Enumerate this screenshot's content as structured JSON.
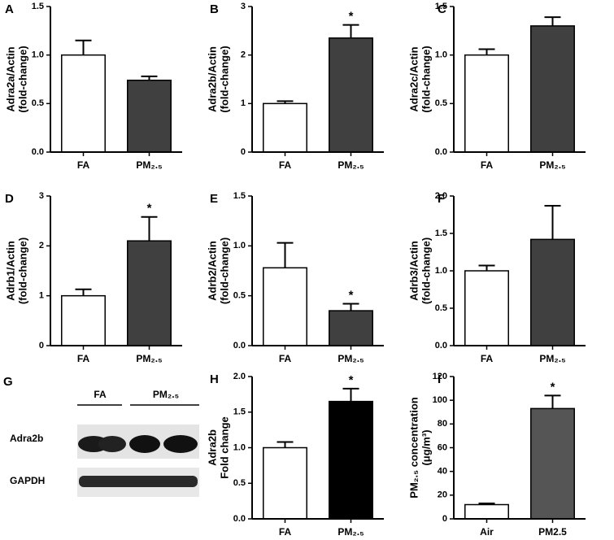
{
  "chart_data": [
    {
      "type": "bar",
      "panel": "A",
      "ylabel": [
        "Adra2a/Actin",
        "(fold-change)"
      ],
      "categories": [
        "FA",
        "PM₂.₅"
      ],
      "values": [
        1.0,
        0.74
      ],
      "errors": [
        0.15,
        0.04
      ],
      "colors": [
        "#ffffff",
        "#404040"
      ],
      "annotations": [
        null,
        null
      ],
      "ylim": [
        0,
        1.5
      ],
      "yticks": [
        {
          "value": 0,
          "label": "0.0"
        },
        0.5,
        {
          "value": 1,
          "label": "1.0"
        },
        1.5
      ]
    },
    {
      "type": "bar",
      "panel": "B",
      "ylabel": [
        "Adra2b/Actin",
        "(fold-change)"
      ],
      "categories": [
        "FA",
        "PM₂.₅"
      ],
      "values": [
        1.0,
        2.35
      ],
      "errors": [
        0.05,
        0.27
      ],
      "colors": [
        "#ffffff",
        "#404040"
      ],
      "annotations": [
        null,
        "*"
      ],
      "ylim": [
        0,
        3
      ],
      "yticks": [
        0,
        1,
        2,
        3
      ]
    },
    {
      "type": "bar",
      "panel": "C",
      "ylabel": [
        "Adra2c/Actin",
        "(fold-change)"
      ],
      "categories": [
        "FA",
        "PM₂.₅"
      ],
      "values": [
        1.0,
        1.3
      ],
      "errors": [
        0.06,
        0.09
      ],
      "colors": [
        "#ffffff",
        "#404040"
      ],
      "annotations": [
        null,
        null
      ],
      "ylim": [
        0,
        1.5
      ],
      "yticks": [
        {
          "value": 0,
          "label": "0.0"
        },
        0.5,
        {
          "value": 1,
          "label": "1.0"
        },
        1.5
      ]
    },
    {
      "type": "bar",
      "panel": "D",
      "ylabel": [
        "Adrb1/Actin",
        "(fold-change)"
      ],
      "categories": [
        "FA",
        "PM₂.₅"
      ],
      "values": [
        1.0,
        2.1
      ],
      "errors": [
        0.13,
        0.48
      ],
      "colors": [
        "#ffffff",
        "#404040"
      ],
      "annotations": [
        null,
        "*"
      ],
      "ylim": [
        0,
        3
      ],
      "yticks": [
        0,
        1,
        2,
        3
      ]
    },
    {
      "type": "bar",
      "panel": "E",
      "ylabel": [
        "Adrb2/Actin",
        "(fold-change)"
      ],
      "categories": [
        "FA",
        "PM₂.₅"
      ],
      "values": [
        0.78,
        0.35
      ],
      "errors": [
        0.25,
        0.07
      ],
      "colors": [
        "#ffffff",
        "#404040"
      ],
      "annotations": [
        null,
        "*"
      ],
      "ylim": [
        0,
        1.5
      ],
      "yticks": [
        {
          "value": 0,
          "label": "0.0"
        },
        0.5,
        {
          "value": 1,
          "label": "1.0"
        },
        1.5
      ]
    },
    {
      "type": "bar",
      "panel": "F",
      "ylabel": [
        "Adrb3/Actin",
        "(fold-change)"
      ],
      "categories": [
        "FA",
        "PM₂.₅"
      ],
      "values": [
        1.0,
        1.42
      ],
      "errors": [
        0.07,
        0.45
      ],
      "colors": [
        "#ffffff",
        "#404040"
      ],
      "annotations": [
        null,
        null
      ],
      "ylim": [
        0,
        2
      ],
      "yticks": [
        {
          "value": 0,
          "label": "0.0"
        },
        0.5,
        {
          "value": 1,
          "label": "1.0"
        },
        1.5,
        {
          "value": 2,
          "label": "2.0"
        }
      ]
    },
    {
      "type": "bar",
      "panel": "H",
      "ylabel": [
        "Adra2b",
        "Fold change"
      ],
      "categories": [
        "FA",
        "PM₂.₅"
      ],
      "values": [
        1.0,
        1.65
      ],
      "errors": [
        0.08,
        0.18
      ],
      "colors": [
        "#ffffff",
        "#000000"
      ],
      "annotations": [
        null,
        "*"
      ],
      "ylim": [
        0,
        2
      ],
      "yticks": [
        {
          "value": 0,
          "label": "0.0"
        },
        0.5,
        {
          "value": 1,
          "label": "1.0"
        },
        1.5,
        {
          "value": 2,
          "label": "2.0"
        }
      ]
    },
    {
      "type": "bar",
      "panel": "I",
      "ylabel": [
        "PM₂.₅ concentration",
        "(μg/m³)"
      ],
      "categories": [
        "Air",
        "PM2.5"
      ],
      "values": [
        12,
        93
      ],
      "errors": [
        1,
        11
      ],
      "colors": [
        "#ffffff",
        "#555555"
      ],
      "annotations": [
        null,
        "*"
      ],
      "ylim": [
        0,
        120
      ],
      "yticks": [
        0,
        20,
        40,
        60,
        80,
        100,
        120
      ]
    }
  ],
  "blot": {
    "panel": "G",
    "groups": [
      "FA",
      "PM₂.₅"
    ],
    "rows": [
      "Adra2b",
      "GAPDH"
    ]
  }
}
